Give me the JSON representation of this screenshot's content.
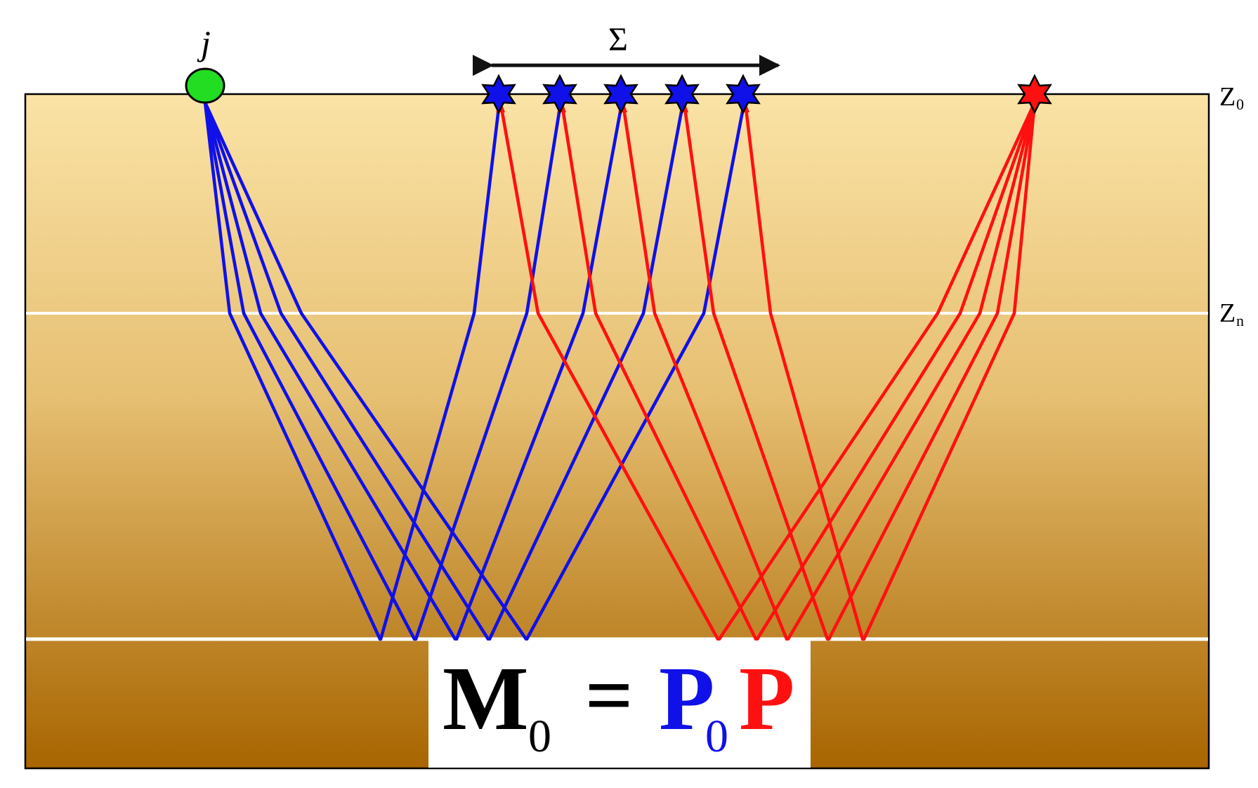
{
  "labels": {
    "sigma": "Σ",
    "virtual_source": "j",
    "z0": "Z",
    "z0_sub": "0",
    "zn": "Z",
    "zn_sub": "n"
  },
  "equation": {
    "lhs": "M",
    "lhs_sub": "0",
    "equals": "=",
    "p0": "P",
    "p0_sub": "0",
    "p": "P"
  },
  "colors": {
    "background_top": "#fae3a6",
    "background_bottom": "#a86500",
    "interface": "#ffffff",
    "blue_rays": "#1010e8",
    "red_rays": "#ff1010",
    "virtual_source_fill": "#22dd22",
    "blue_star": "#1010e8",
    "red_star": "#ff1010",
    "equation_black": "#000000",
    "equation_blue": "#1010e8",
    "equation_red": "#ff1010"
  },
  "icons": {
    "virtual_source": "green-circle",
    "receivers": "blue-star",
    "source": "red-star",
    "aperture": "double-headed-arrow"
  },
  "counts": {
    "blue_receiver_stars": 5,
    "red_source_stars": 1,
    "blue_ray_paths": 10,
    "red_ray_paths": 10
  }
}
